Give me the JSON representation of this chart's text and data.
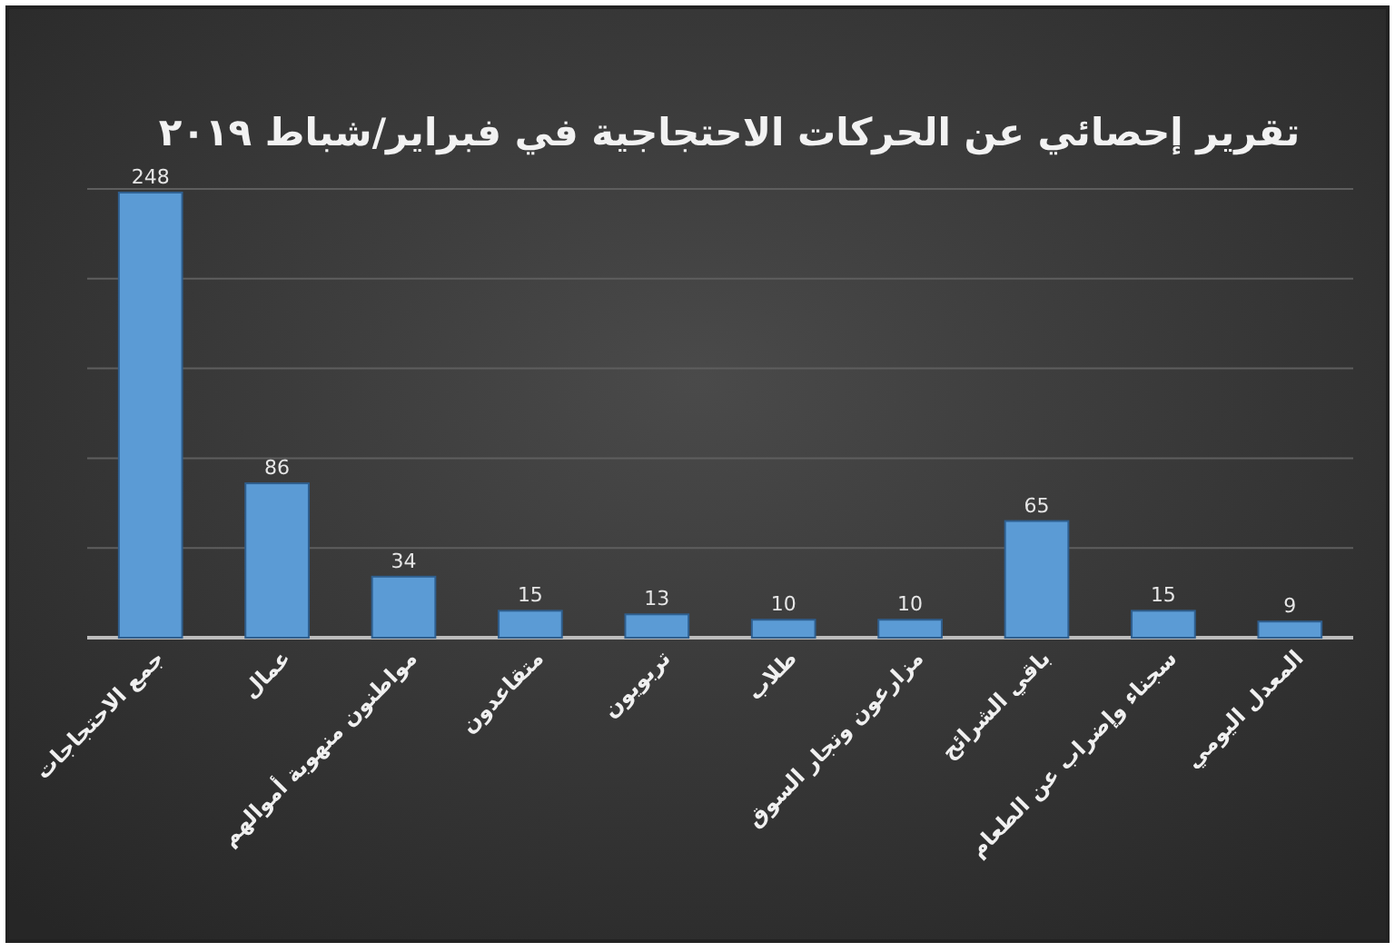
{
  "chart_data": {
    "type": "bar",
    "title": "تقرير إحصائي عن الحركات الاحتجاجية في فبراير/شباط ٢٠١٩",
    "categories": [
      "جمع الاحتجاجات",
      "عمال",
      "مواطنون منهوبة أموالهم",
      "متقاعدون",
      "تربويون",
      "طلاب",
      "مزارعون وتجار السوق",
      "باقي الشرائح",
      "سجناء وإضراب عن الطعام",
      "المعدل اليومي"
    ],
    "values": [
      248,
      86,
      34,
      15,
      13,
      10,
      10,
      65,
      15,
      9
    ],
    "color": "#5b9bd5",
    "ylim": [
      0,
      250
    ],
    "yticks": [
      {
        "value": 0,
        "label": null
      },
      {
        "value": 50,
        "label": null
      },
      {
        "value": 100,
        "label": null
      },
      {
        "value": 150,
        "label": null
      },
      {
        "value": 200,
        "label": null
      },
      {
        "value": 250,
        "label": null
      }
    ],
    "tick_labels": "x",
    "grid": "y",
    "data_labels": true
  }
}
